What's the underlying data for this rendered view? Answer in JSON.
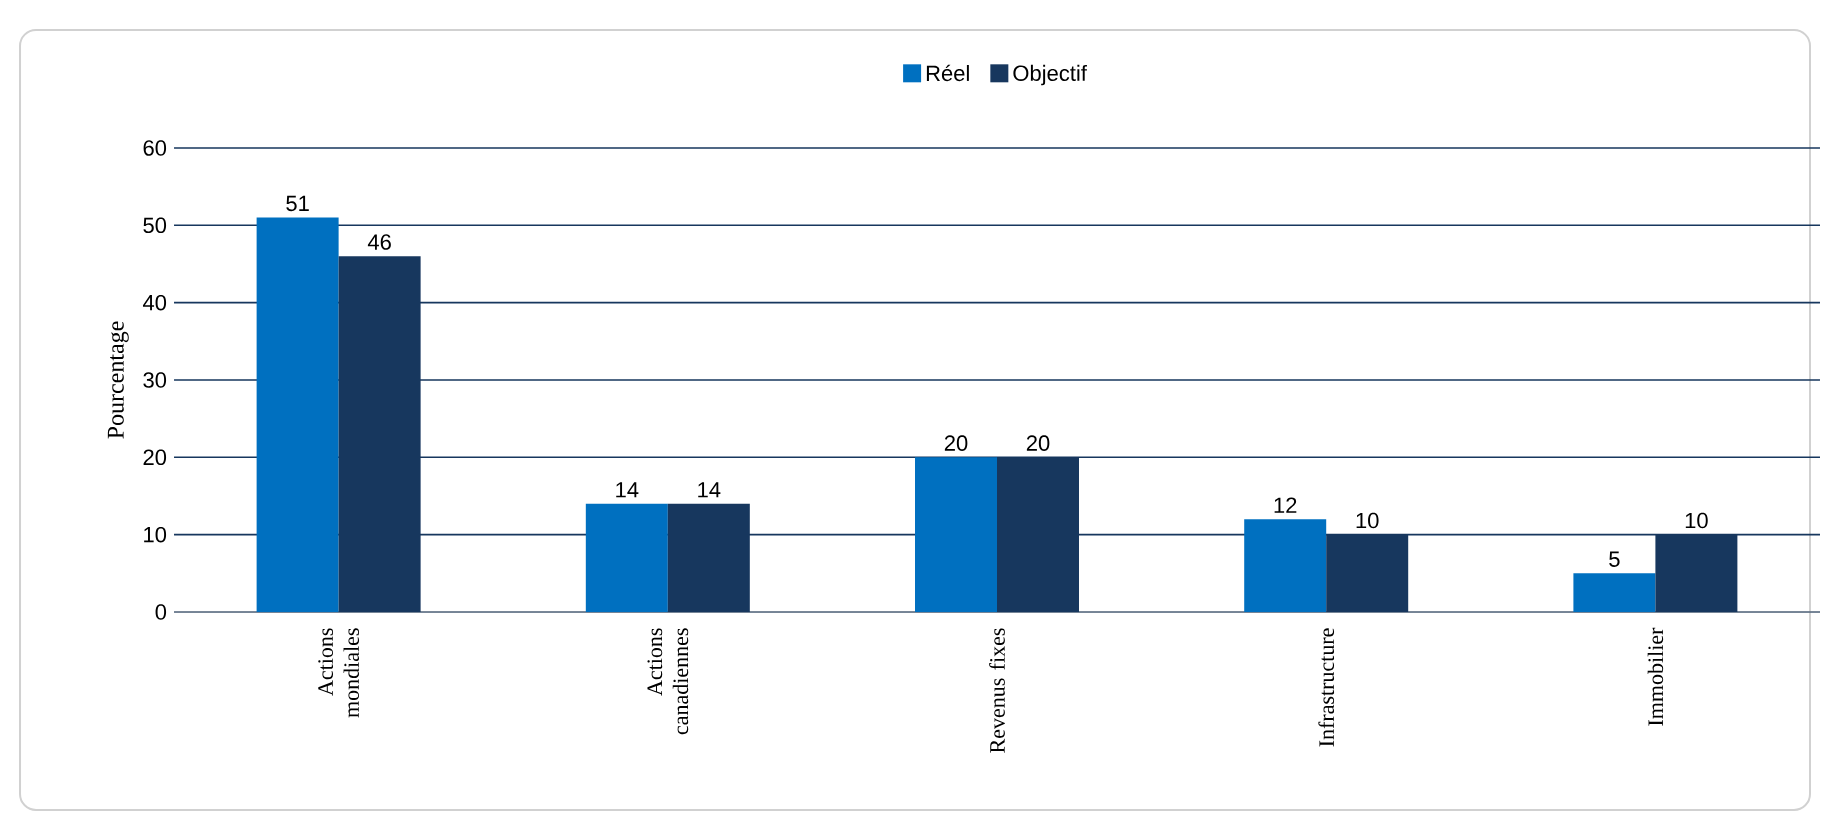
{
  "chart_data": {
    "type": "bar",
    "ylabel": "Pourcentage",
    "categories": [
      "Actions mondiales",
      "Actions canadiennes",
      "Revenus fixes",
      "Infrastructure",
      "Immobilier"
    ],
    "series": [
      {
        "name": "Réel",
        "color": "#0070c0",
        "values": [
          51,
          14,
          20,
          12,
          5
        ]
      },
      {
        "name": "Objectif",
        "color": "#17375e",
        "values": [
          46,
          14,
          20,
          10,
          10
        ]
      }
    ],
    "ylim": [
      0,
      60
    ],
    "yticks": [
      0,
      10,
      20,
      30,
      40,
      50,
      60
    ],
    "grid": "y",
    "legend": "top",
    "data_labels": true
  }
}
